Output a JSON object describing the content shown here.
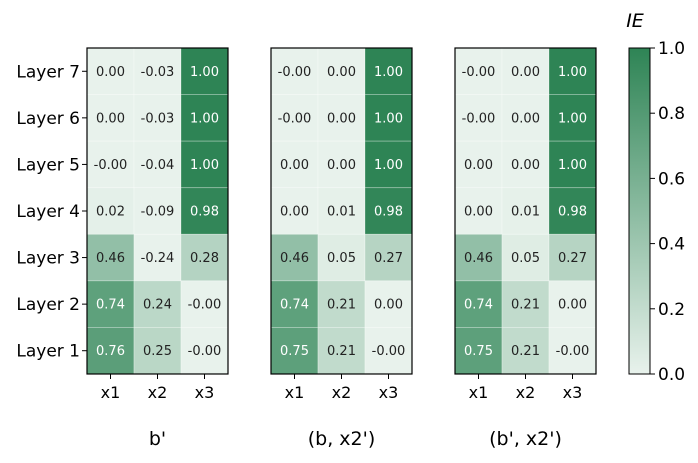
{
  "chart_data": {
    "type": "heatmap",
    "row_labels": [
      "Layer 7",
      "Layer 6",
      "Layer 5",
      "Layer 4",
      "Layer 3",
      "Layer 2",
      "Layer 1"
    ],
    "col_labels": [
      "x1",
      "x2",
      "x3"
    ],
    "panels": [
      {
        "title": "b'",
        "values": [
          [
            "0.00",
            "-0.03",
            "1.00"
          ],
          [
            "0.00",
            "-0.03",
            "1.00"
          ],
          [
            "-0.00",
            "-0.04",
            "1.00"
          ],
          [
            "0.02",
            "-0.09",
            "0.98"
          ],
          [
            "0.46",
            "-0.24",
            "0.28"
          ],
          [
            "0.74",
            "0.24",
            "-0.00"
          ],
          [
            "0.76",
            "0.25",
            "-0.00"
          ]
        ]
      },
      {
        "title": "(b, x2')",
        "values": [
          [
            "-0.00",
            "0.00",
            "1.00"
          ],
          [
            "-0.00",
            "0.00",
            "1.00"
          ],
          [
            "0.00",
            "0.00",
            "1.00"
          ],
          [
            "0.00",
            "0.01",
            "0.98"
          ],
          [
            "0.46",
            "0.05",
            "0.27"
          ],
          [
            "0.74",
            "0.21",
            "0.00"
          ],
          [
            "0.75",
            "0.21",
            "-0.00"
          ]
        ]
      },
      {
        "title": "(b', x2')",
        "values": [
          [
            "-0.00",
            "0.00",
            "1.00"
          ],
          [
            "-0.00",
            "0.00",
            "1.00"
          ],
          [
            "0.00",
            "0.00",
            "1.00"
          ],
          [
            "0.00",
            "0.01",
            "0.98"
          ],
          [
            "0.46",
            "0.05",
            "0.27"
          ],
          [
            "0.74",
            "0.21",
            "0.00"
          ],
          [
            "0.75",
            "0.21",
            "-0.00"
          ]
        ]
      }
    ],
    "colorbar": {
      "title": "IE",
      "range": [
        0.0,
        1.0
      ],
      "ticks": [
        "0.0",
        "0.2",
        "0.4",
        "0.6",
        "0.8",
        "1.0"
      ],
      "color_low": "#e8f2ec",
      "color_high": "#2e8455"
    }
  }
}
